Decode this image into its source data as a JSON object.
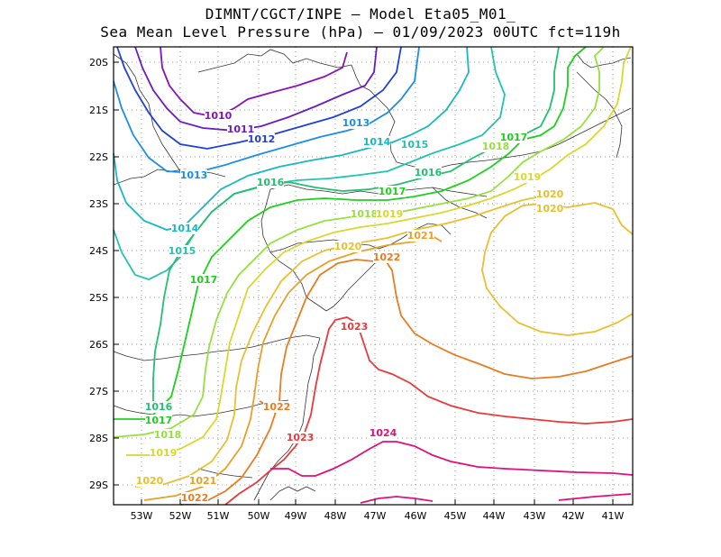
{
  "title_line1": "DIMNT/CGCT/INPE —  Model Eta05_M01_",
  "title_line2": "Sea Mean Level Pressure (hPa) — 01/09/2023 00UTC fct=119h",
  "x_ticks": [
    "53W",
    "52W",
    "51W",
    "50W",
    "49W",
    "48W",
    "47W",
    "46W",
    "45W",
    "44W",
    "43W",
    "42W",
    "41W"
  ],
  "y_ticks": [
    "20S",
    "21S",
    "22S",
    "23S",
    "24S",
    "25S",
    "26S",
    "27S",
    "28S",
    "29S"
  ],
  "contour_labels": [
    {
      "text": "1010",
      "color": "#8a12b8"
    },
    {
      "text": "1011",
      "color": "#6a1cc0"
    },
    {
      "text": "1012",
      "color": "#2040d8"
    },
    {
      "text": "1013",
      "color": "#1a8ee8"
    },
    {
      "text": "1013",
      "color": "#1a8ee8"
    },
    {
      "text": "1014",
      "color": "#18b8c0"
    },
    {
      "text": "1014",
      "color": "#18b8c0"
    },
    {
      "text": "1015",
      "color": "#20c4b0"
    },
    {
      "text": "1015",
      "color": "#20c4b0"
    },
    {
      "text": "1016",
      "color": "#22c070"
    },
    {
      "text": "1016",
      "color": "#22c070"
    },
    {
      "text": "1016",
      "color": "#22c070"
    },
    {
      "text": "1017",
      "color": "#1ed01e"
    },
    {
      "text": "1017",
      "color": "#1ed01e"
    },
    {
      "text": "1017",
      "color": "#1ed01e"
    },
    {
      "text": "1017",
      "color": "#1ed01e"
    },
    {
      "text": "1018",
      "color": "#96e040"
    },
    {
      "text": "1018",
      "color": "#96e040"
    },
    {
      "text": "1018",
      "color": "#96e040"
    },
    {
      "text": "1019",
      "color": "#d8d830"
    },
    {
      "text": "1019",
      "color": "#d8d830"
    },
    {
      "text": "1019",
      "color": "#d8d830"
    },
    {
      "text": "1020",
      "color": "#e8c030"
    },
    {
      "text": "1020",
      "color": "#e8c030"
    },
    {
      "text": "1020",
      "color": "#e8c030"
    },
    {
      "text": "1020",
      "color": "#e8c030"
    },
    {
      "text": "1021",
      "color": "#e8a028"
    },
    {
      "text": "1021",
      "color": "#e8a028"
    },
    {
      "text": "1022",
      "color": "#e87c20"
    },
    {
      "text": "1022",
      "color": "#e87c20"
    },
    {
      "text": "1022",
      "color": "#e87c20"
    },
    {
      "text": "1023",
      "color": "#e83a3a"
    },
    {
      "text": "1023",
      "color": "#e83a3a"
    },
    {
      "text": "1024",
      "color": "#e0107a"
    }
  ],
  "colors": {
    "c1010": "#8a12b8",
    "c1011": "#6a1cc0",
    "c1012": "#2040d8",
    "c1013": "#1a8ee8",
    "c1014": "#18b8c0",
    "c1015": "#20c4b0",
    "c1016": "#22c070",
    "c1017": "#1ed01e",
    "c1018": "#96e040",
    "c1019": "#d8d830",
    "c1020": "#e8c030",
    "c1021": "#e8a028",
    "c1022": "#e87c20",
    "c1023": "#e83a3a",
    "c1024": "#e0107a"
  }
}
